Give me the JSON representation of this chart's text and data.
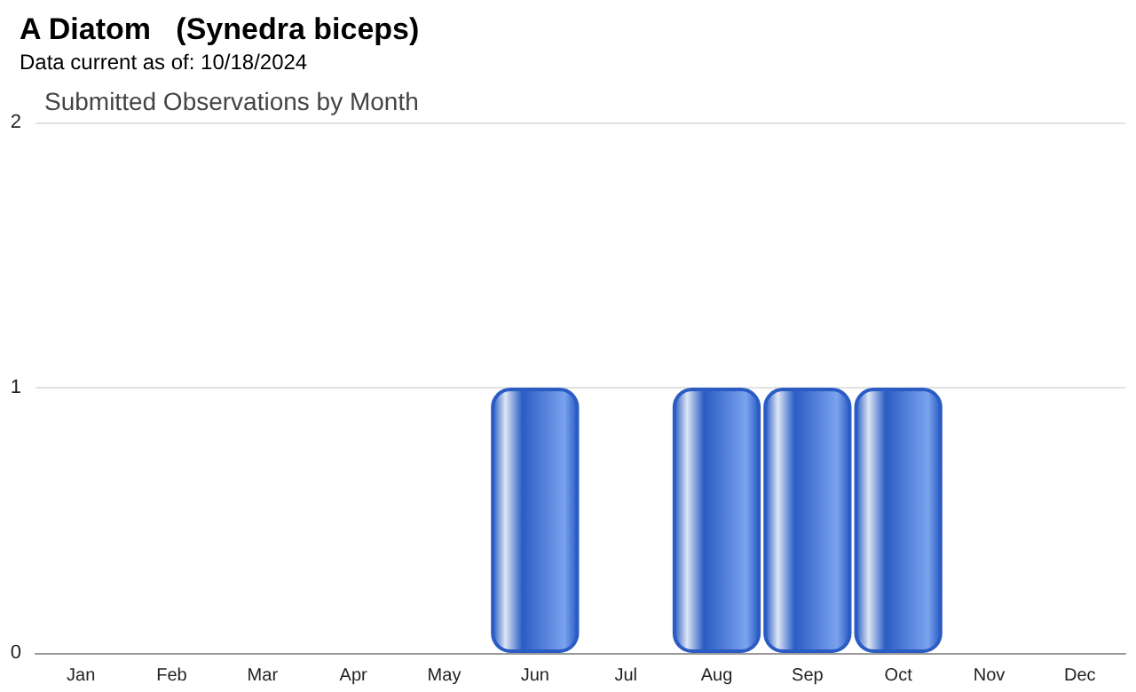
{
  "chart_data": {
    "type": "bar",
    "title": "A Diatom   (Synedra biceps)",
    "subtitle": "Data current as of: 10/18/2024",
    "annotations": [
      "Submitted Observations by Month"
    ],
    "categories": [
      "Jan",
      "Feb",
      "Mar",
      "Apr",
      "May",
      "Jun",
      "Jul",
      "Aug",
      "Sep",
      "Oct",
      "Nov",
      "Dec"
    ],
    "values": [
      0,
      0,
      0,
      0,
      0,
      1,
      0,
      1,
      1,
      1,
      0,
      0
    ],
    "color": "#2a5cc4",
    "ylim": [
      0,
      2
    ],
    "yticks": [
      0,
      1,
      2
    ],
    "grid": "y"
  }
}
